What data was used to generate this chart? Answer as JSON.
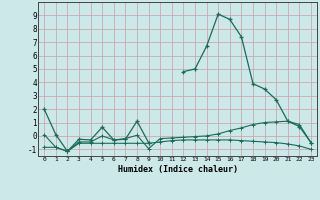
{
  "xlabel": "Humidex (Indice chaleur)",
  "background_color": "#cce8e8",
  "grid_color_major": "#c8a0a0",
  "grid_color_minor": "#b0d4d4",
  "line_color": "#1a6b5a",
  "x_values": [
    0,
    1,
    2,
    3,
    4,
    5,
    6,
    7,
    8,
    9,
    10,
    11,
    12,
    13,
    14,
    15,
    16,
    17,
    18,
    19,
    20,
    21,
    22,
    23
  ],
  "line1": [
    2.0,
    0.1,
    -1.15,
    -0.25,
    -0.3,
    0.65,
    -0.3,
    -0.25,
    1.1,
    -0.5,
    null,
    null,
    4.8,
    5.0,
    6.7,
    9.1,
    8.7,
    7.4,
    3.9,
    3.5,
    2.7,
    1.1,
    0.7,
    -0.5
  ],
  "line2": [
    -0.85,
    -0.85,
    -1.15,
    -0.55,
    -0.55,
    -0.55,
    -0.55,
    -0.55,
    -0.55,
    -0.55,
    -0.45,
    -0.35,
    -0.3,
    -0.3,
    -0.3,
    -0.3,
    -0.3,
    -0.35,
    -0.4,
    -0.45,
    -0.5,
    -0.6,
    -0.75,
    -1.0
  ],
  "line3": [
    0.1,
    -0.85,
    -1.15,
    -0.45,
    -0.45,
    0.0,
    -0.3,
    -0.2,
    0.05,
    -0.95,
    -0.2,
    -0.15,
    -0.1,
    -0.05,
    0.0,
    0.15,
    0.4,
    0.6,
    0.85,
    1.0,
    1.05,
    1.1,
    0.85,
    -0.5
  ],
  "ylim": [
    -1.5,
    10
  ],
  "xlim": [
    -0.5,
    23.5
  ],
  "yticks": [
    -1,
    0,
    1,
    2,
    3,
    4,
    5,
    6,
    7,
    8,
    9
  ],
  "xticks": [
    0,
    1,
    2,
    3,
    4,
    5,
    6,
    7,
    8,
    9,
    10,
    11,
    12,
    13,
    14,
    15,
    16,
    17,
    18,
    19,
    20,
    21,
    22,
    23
  ]
}
